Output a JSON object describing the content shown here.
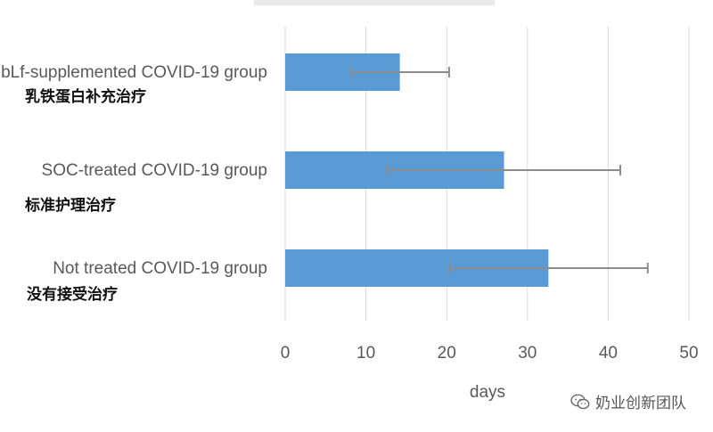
{
  "chart_data": {
    "type": "bar",
    "orientation": "horizontal",
    "categories": [
      "bLf-supplemented COVID-19 group",
      "SOC-treated COVID-19 group",
      "Not treated COVID-19 group"
    ],
    "categories_cn": [
      "乳铁蛋白补充治疗",
      "标准护理治疗",
      "没有接受治疗"
    ],
    "values": [
      14.2,
      27.1,
      32.6
    ],
    "error_low": [
      8.2,
      12.7,
      20.4
    ],
    "error_high": [
      20.3,
      41.5,
      44.9
    ],
    "xlabel": "days",
    "xlim": [
      0,
      50
    ],
    "xticks": [
      0,
      10,
      20,
      30,
      40,
      50
    ],
    "grid": true,
    "bar_color": "#5b9bd5",
    "error_color": "#8c8c8c"
  },
  "watermark": {
    "text": "奶业创新团队",
    "icon": "wechat-icon"
  }
}
